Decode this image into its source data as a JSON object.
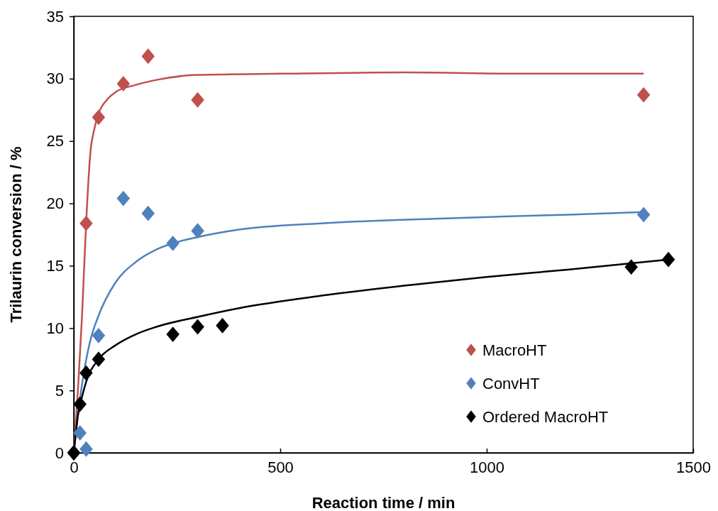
{
  "chart_data": {
    "type": "scatter",
    "xlabel": "Reaction time / min",
    "ylabel": "Trilaurin conversion / %",
    "xlim": [
      0,
      1500
    ],
    "ylim": [
      0,
      35
    ],
    "xticks": [
      0,
      500,
      1000,
      1500
    ],
    "yticks": [
      0,
      5,
      10,
      15,
      20,
      25,
      30,
      35
    ],
    "grid": false,
    "legend": "right",
    "marker": "diamond",
    "series": [
      {
        "type": "line",
        "marker": "none",
        "color": "#c0504d",
        "x": [
          0,
          10,
          20,
          30,
          40,
          50,
          60,
          80,
          100,
          150,
          200,
          300,
          500,
          800,
          1100,
          1380
        ],
        "values": [
          0,
          5,
          11,
          18.5,
          24,
          26,
          27.2,
          28.3,
          28.9,
          29.5,
          29.9,
          30.3,
          30.4,
          30.5,
          30.4,
          30.4
        ]
      },
      {
        "type": "line",
        "marker": "none",
        "color": "#4f81bd",
        "x": [
          0,
          10,
          20,
          40,
          60,
          100,
          150,
          200,
          240,
          300,
          400,
          600,
          900,
          1200,
          1380
        ],
        "values": [
          0,
          3,
          5.5,
          9,
          11,
          13.6,
          15.3,
          16.3,
          16.8,
          17.3,
          17.9,
          18.4,
          18.8,
          19.1,
          19.3
        ]
      },
      {
        "type": "line",
        "marker": "none",
        "color": "#000000",
        "x": [
          0,
          10,
          20,
          30,
          60,
          100,
          150,
          200,
          300,
          400,
          600,
          800,
          1000,
          1200,
          1440
        ],
        "values": [
          0,
          3,
          4.5,
          5.7,
          7.5,
          8.6,
          9.5,
          10.1,
          10.9,
          11.6,
          12.6,
          13.4,
          14.1,
          14.7,
          15.5
        ]
      },
      {
        "name": "MacroHT",
        "color": "#c0504d",
        "x": [
          0,
          30,
          60,
          120,
          180,
          300,
          1380
        ],
        "values": [
          0,
          18.4,
          26.9,
          29.6,
          31.8,
          28.3,
          28.7
        ]
      },
      {
        "name": "ConvHT",
        "color": "#4f81bd",
        "x": [
          0,
          15,
          30,
          60,
          120,
          180,
          240,
          300,
          1380
        ],
        "values": [
          0,
          1.6,
          0.3,
          9.4,
          20.4,
          19.2,
          16.8,
          17.8,
          19.1
        ]
      },
      {
        "name": "Ordered MacroHT",
        "color": "#000000",
        "x": [
          0,
          15,
          30,
          60,
          240,
          300,
          360,
          1350,
          1440
        ],
        "values": [
          0,
          3.9,
          6.4,
          7.5,
          9.5,
          10.1,
          10.2,
          14.9,
          15.5
        ]
      }
    ]
  }
}
